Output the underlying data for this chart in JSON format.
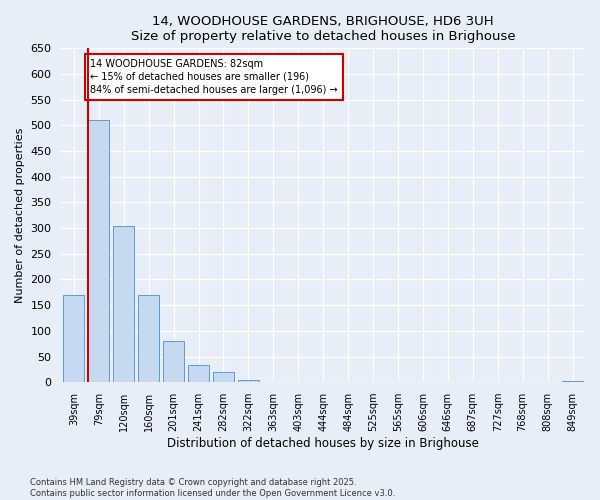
{
  "title": "14, WOODHOUSE GARDENS, BRIGHOUSE, HD6 3UH",
  "subtitle": "Size of property relative to detached houses in Brighouse",
  "xlabel": "Distribution of detached houses by size in Brighouse",
  "ylabel": "Number of detached properties",
  "categories": [
    "39sqm",
    "79sqm",
    "120sqm",
    "160sqm",
    "201sqm",
    "241sqm",
    "282sqm",
    "322sqm",
    "363sqm",
    "403sqm",
    "444sqm",
    "484sqm",
    "525sqm",
    "565sqm",
    "606sqm",
    "646sqm",
    "687sqm",
    "727sqm",
    "768sqm",
    "808sqm",
    "849sqm"
  ],
  "values": [
    170,
    510,
    305,
    170,
    80,
    33,
    20,
    5,
    1,
    0,
    0,
    0,
    0,
    0,
    0,
    0,
    0,
    0,
    0,
    0,
    3
  ],
  "bar_color": "#c5d9f0",
  "bar_edge_color": "#5b9bd5",
  "property_line_color": "#cc0000",
  "annotation_box_color": "#cc0000",
  "annotation_text_line1": "14 WOODHOUSE GARDENS: 82sqm",
  "annotation_text_line2": "← 15% of detached houses are smaller (196)",
  "annotation_text_line3": "84% of semi-detached houses are larger (1,096) →",
  "ylim": [
    0,
    650
  ],
  "yticks": [
    0,
    50,
    100,
    150,
    200,
    250,
    300,
    350,
    400,
    450,
    500,
    550,
    600,
    650
  ],
  "footer_line1": "Contains HM Land Registry data © Crown copyright and database right 2025.",
  "footer_line2": "Contains public sector information licensed under the Open Government Licence v3.0.",
  "bg_color": "#e8eef7",
  "plot_bg_color": "#e8eef7"
}
